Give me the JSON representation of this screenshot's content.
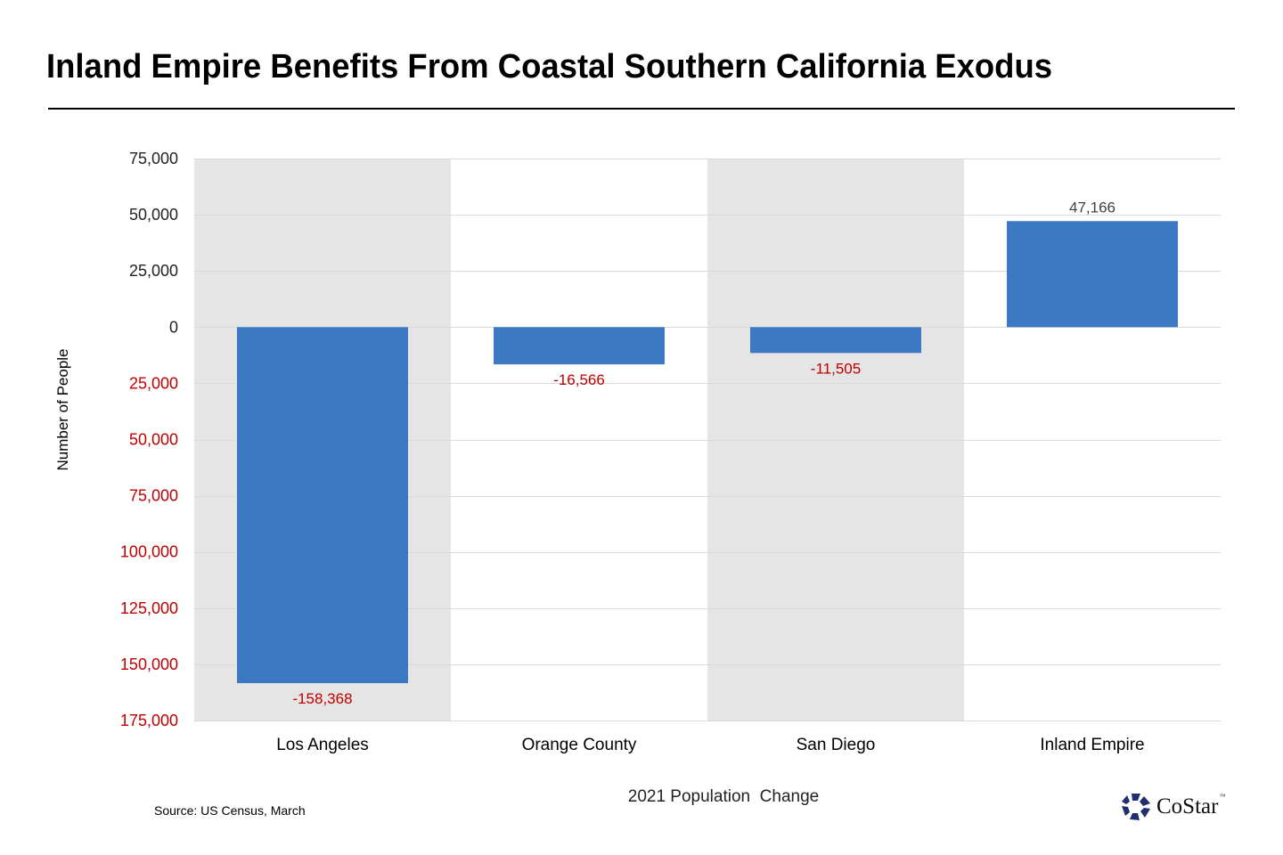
{
  "title": "Inland Empire Benefits From Coastal Southern California Exodus",
  "source": "Source: US Census, March",
  "logo": {
    "name": "CoStar",
    "tm": "™",
    "icon": "costar-star-icon",
    "color": "#1f2f6b"
  },
  "colors": {
    "bar": "#3d78c2",
    "band": "#e6e5e6",
    "grid": "#d9d9d9",
    "negative_label": "#c00000",
    "positive_label": "#404040",
    "axis_text": "#222222"
  },
  "chart_data": {
    "type": "bar",
    "title": "Inland Empire Benefits From Coastal Southern California Exodus",
    "xlabel": "2021 Population  Change",
    "ylabel": "Number  of People",
    "categories": [
      "Los Angeles",
      "Orange County",
      "San Diego",
      "Inland Empire"
    ],
    "values": [
      -158368,
      -16566,
      -11505,
      47166
    ],
    "data_labels": [
      "-158,368",
      "-16,566",
      "-11,505",
      "47,166"
    ],
    "ylim": [
      -175000,
      75000
    ],
    "yticks": [
      75000,
      50000,
      25000,
      0,
      -25000,
      -50000,
      -75000,
      -100000,
      -125000,
      -150000,
      -175000
    ],
    "ytick_labels": [
      "75,000",
      "50,000",
      "25,000",
      "0",
      "25,000",
      "50,000",
      "75,000",
      "100,000",
      "125,000",
      "150,000",
      "175,000"
    ],
    "shaded_categories": [
      "Los Angeles",
      "San Diego"
    ],
    "grid": true,
    "legend": "none"
  }
}
